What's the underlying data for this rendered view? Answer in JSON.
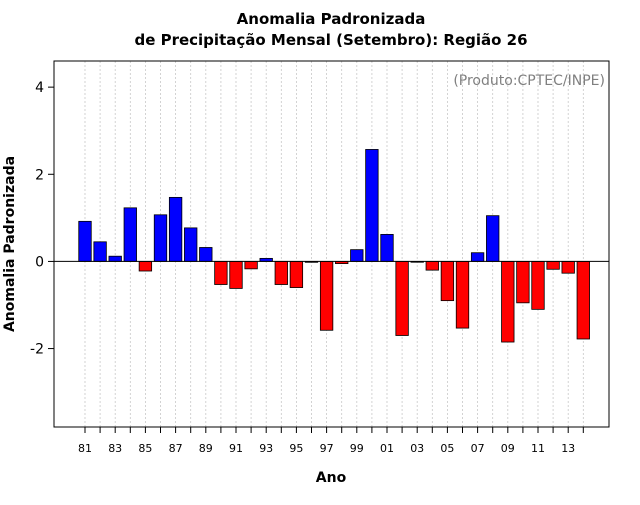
{
  "chart_data": {
    "type": "bar",
    "title_line1": "Anomalia Padronizada",
    "title_line2": "de Precipitação Mensal (Setembro): Região 26",
    "xlabel": "Ano",
    "ylabel": "Anomalia Padronizada",
    "credit": "(Produto:CPTEC/INPE)",
    "ylim": [
      -3.8,
      4.6
    ],
    "yticks": [
      -2,
      0,
      2,
      4
    ],
    "ytick_labels": [
      "-2",
      "0",
      "2",
      "4"
    ],
    "grid": "vertical dotted",
    "positive_color": "#0000ff",
    "negative_color": "#ff0000",
    "categories": [
      "1981",
      "1982",
      "1983",
      "1984",
      "1985",
      "1986",
      "1987",
      "1988",
      "1989",
      "1990",
      "1991",
      "1992",
      "1993",
      "1994",
      "1995",
      "1996",
      "1997",
      "1998",
      "1999",
      "2000",
      "2001",
      "2002",
      "2003",
      "2004",
      "2005",
      "2006",
      "2007",
      "2008",
      "2009",
      "2010",
      "2011",
      "2012",
      "2013",
      "2014"
    ],
    "xtick_labels": [
      "81",
      "83",
      "85",
      "87",
      "89",
      "91",
      "93",
      "95",
      "97",
      "99",
      "01",
      "03",
      "05",
      "07",
      "09",
      "11",
      "13"
    ],
    "values": [
      0.92,
      0.45,
      0.12,
      1.23,
      -0.22,
      1.07,
      1.47,
      0.77,
      0.32,
      -0.53,
      -0.62,
      -0.17,
      0.07,
      -0.53,
      -0.6,
      -0.02,
      -1.58,
      -0.05,
      0.27,
      2.57,
      0.62,
      -1.7,
      0.0,
      -0.2,
      -0.9,
      -1.53,
      0.2,
      1.05,
      -1.85,
      -0.95,
      -1.1,
      -0.18,
      -0.27,
      -1.78
    ]
  }
}
